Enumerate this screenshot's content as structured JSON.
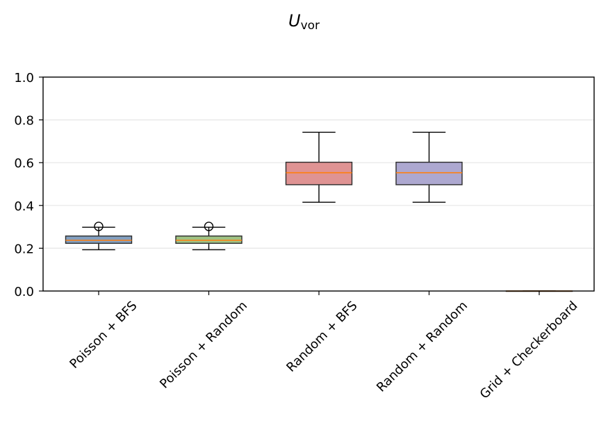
{
  "chart_data": {
    "type": "box",
    "title_main": "U",
    "title_sub": "vor",
    "xlabel": "",
    "ylabel": "",
    "ylim": [
      0,
      1.0
    ],
    "yticks": [
      "0.0",
      "0.2",
      "0.4",
      "0.6",
      "0.8",
      "1.0"
    ],
    "grid": "horizontal",
    "categories": [
      "Poisson + BFS",
      "Poisson + Random",
      "Random + BFS",
      "Random + Random",
      "Grid + Checkerboard"
    ],
    "boxes": [
      {
        "whislo": 0.193,
        "q1": 0.223,
        "med": 0.237,
        "q3": 0.257,
        "whishi": 0.298,
        "fliers": [
          0.302
        ],
        "color": "#6f8fb5"
      },
      {
        "whislo": 0.193,
        "q1": 0.223,
        "med": 0.237,
        "q3": 0.257,
        "whishi": 0.298,
        "fliers": [
          0.302
        ],
        "color": "#8fb86f"
      },
      {
        "whislo": 0.415,
        "q1": 0.497,
        "med": 0.553,
        "q3": 0.602,
        "whishi": 0.742,
        "fliers": [],
        "color": "#d98080"
      },
      {
        "whislo": 0.415,
        "q1": 0.497,
        "med": 0.553,
        "q3": 0.602,
        "whishi": 0.742,
        "fliers": [],
        "color": "#9f99c8"
      },
      {
        "whislo": 0.0,
        "q1": 0.0,
        "med": 0.0,
        "q3": 0.0,
        "whishi": 0.0,
        "fliers": [],
        "color": "#e8b070"
      }
    ],
    "median_color": "#ff7f0e"
  }
}
